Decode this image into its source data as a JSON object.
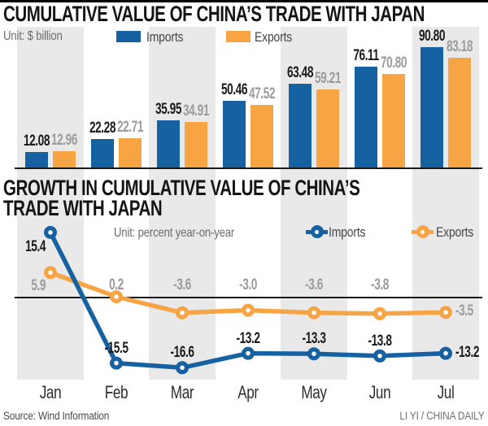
{
  "colors": {
    "imports": "#1561A1",
    "exports": "#F7A445",
    "stripe": "#E9E9E9",
    "imports_value_label": "#1A1A1A",
    "exports_value_label": "#9C9C9C",
    "axis_line": "#1A1A1A",
    "top_border": "#000000"
  },
  "months": [
    "Jan",
    "Feb",
    "Mar",
    "Apr",
    "May",
    "Jun",
    "Jul"
  ],
  "chart_data": [
    {
      "type": "bar",
      "title": "CUMULATIVE VALUE OF CHINA’S TRADE WITH JAPAN",
      "unit_label": "Unit: $ billion",
      "categories": [
        "Jan",
        "Feb",
        "Mar",
        "Apr",
        "May",
        "Jun",
        "Jul"
      ],
      "series": [
        {
          "name": "Imports",
          "color": "#1561A1",
          "values": [
            12.08,
            22.28,
            35.95,
            50.46,
            63.48,
            76.11,
            90.8
          ],
          "labels": [
            "12.08",
            "22.28",
            "35.95",
            "50.46",
            "63.48",
            "76.11",
            "90.80"
          ]
        },
        {
          "name": "Exports",
          "color": "#F7A445",
          "values": [
            12.96,
            22.71,
            34.91,
            47.52,
            59.21,
            70.8,
            83.18
          ],
          "labels": [
            "12.96",
            "22.71",
            "34.91",
            "47.52",
            "59.21",
            "70.80",
            "83.18"
          ]
        }
      ],
      "ylim": [
        0,
        92
      ],
      "grid": false,
      "legend_position": "top",
      "value_labels": "above-bars"
    },
    {
      "type": "line",
      "title": "GROWTH IN CUMULATIVE VALUE OF CHINA’S TRADE WITH JAPAN",
      "title_lines": [
        "GROWTH IN CUMULATIVE VALUE OF CHINA’S",
        "TRADE WITH JAPAN"
      ],
      "unit_label": "Unit: percent year-on-year",
      "x": [
        "Jan",
        "Feb",
        "Mar",
        "Apr",
        "May",
        "Jun",
        "Jul"
      ],
      "series": [
        {
          "name": "Imports",
          "color": "#1561A1",
          "values": [
            15.4,
            -15.5,
            -16.6,
            -13.2,
            -13.3,
            -13.8,
            -13.2
          ],
          "labels": [
            "15.4",
            "-15.5",
            "-16.6",
            "-13.2",
            "-13.3",
            "-13.8",
            "-13.2"
          ]
        },
        {
          "name": "Exports",
          "color": "#F7A445",
          "values": [
            5.9,
            0.2,
            -3.6,
            -3.0,
            -3.6,
            -3.8,
            -3.5
          ],
          "labels": [
            "5.9",
            "0.2",
            "-3.6",
            "-3.0",
            "-3.6",
            "-3.8",
            "-3.5"
          ]
        }
      ],
      "baseline_value": 0,
      "marker": "ring-dot",
      "legend_position": "top"
    }
  ],
  "footer": {
    "source": "Source: Wind Information",
    "credit": "LI YI / CHINA DAILY"
  }
}
